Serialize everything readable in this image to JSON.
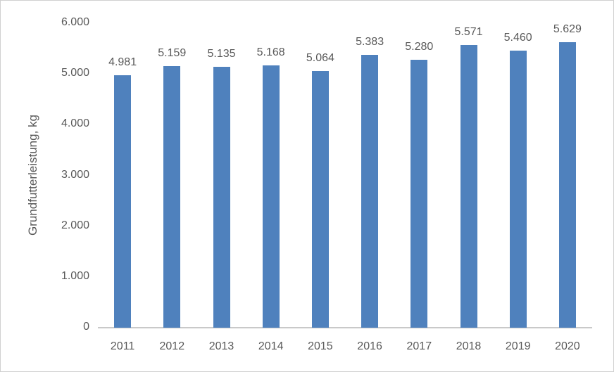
{
  "chart_data": {
    "type": "bar",
    "categories": [
      "2011",
      "2012",
      "2013",
      "2014",
      "2015",
      "2016",
      "2017",
      "2018",
      "2019",
      "2020"
    ],
    "values": [
      4981,
      5159,
      5135,
      5168,
      5064,
      5383,
      5280,
      5571,
      5460,
      5629
    ],
    "data_labels": [
      "4.981",
      "5.159",
      "5.135",
      "5.168",
      "5.064",
      "5.383",
      "5.280",
      "5.571",
      "5.460",
      "5.629"
    ],
    "title": "",
    "xlabel": "",
    "ylabel": "Grundfutterleistung, kg",
    "ylim": [
      0,
      6000
    ],
    "ytick_interval": 1000,
    "ytick_labels": [
      "0",
      "1.000",
      "2.000",
      "3.000",
      "4.000",
      "5.000",
      "6.000"
    ],
    "grid": false,
    "legend_position": "none",
    "bar_color": "#4f81bd",
    "axis_line_color": "#c9c9c9",
    "text_color": "#595959"
  }
}
